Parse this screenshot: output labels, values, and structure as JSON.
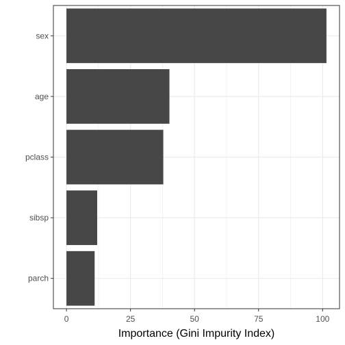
{
  "chart_data": {
    "type": "bar",
    "orientation": "horizontal",
    "categories": [
      "sex",
      "age",
      "pclass",
      "sibsp",
      "parch"
    ],
    "values": [
      101.5,
      40.2,
      37.8,
      12.0,
      11.0
    ],
    "xlabel": "Importance (Gini Impurity Index)",
    "ylabel": "",
    "xlim": [
      -5.1,
      106.6
    ],
    "x_ticks": [
      0,
      25,
      50,
      75,
      100
    ],
    "grid": true,
    "bar_color": "#474747",
    "grid_color": "#ebebeb",
    "panel_border_color": "#333333"
  }
}
